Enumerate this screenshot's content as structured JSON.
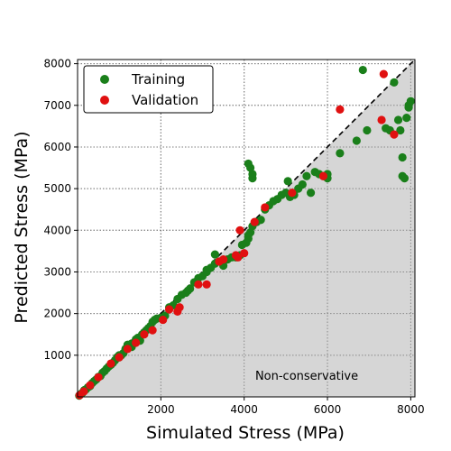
{
  "chart_data": {
    "type": "scatter",
    "xlabel": "Simulated Stress (MPa)",
    "ylabel": "Predicted Stress (MPa)",
    "xlim": [
      0,
      8100
    ],
    "ylim": [
      0,
      8100
    ],
    "xticks": [
      2000,
      4000,
      6000,
      8000
    ],
    "yticks": [
      1000,
      2000,
      3000,
      4000,
      5000,
      6000,
      7000,
      8000
    ],
    "grid": true,
    "legend_position": "top-left",
    "annotation": "Non-conservative",
    "shaded_region": "below y = x",
    "reference_line": "y = x (dashed)",
    "colors": {
      "training": "#1a7f1a",
      "validation": "#e01010",
      "shade": "#d6d6d6"
    },
    "series": [
      {
        "name": "Training",
        "points": [
          [
            40,
            30
          ],
          [
            80,
            70
          ],
          [
            120,
            100
          ],
          [
            160,
            160
          ],
          [
            200,
            180
          ],
          [
            250,
            230
          ],
          [
            300,
            260
          ],
          [
            350,
            330
          ],
          [
            400,
            380
          ],
          [
            450,
            420
          ],
          [
            500,
            480
          ],
          [
            550,
            500
          ],
          [
            600,
            580
          ],
          [
            650,
            620
          ],
          [
            700,
            680
          ],
          [
            750,
            730
          ],
          [
            800,
            770
          ],
          [
            850,
            820
          ],
          [
            900,
            880
          ],
          [
            950,
            950
          ],
          [
            1000,
            1000
          ],
          [
            1050,
            1000
          ],
          [
            1100,
            1050
          ],
          [
            1150,
            1150
          ],
          [
            1200,
            1250
          ],
          [
            1250,
            1230
          ],
          [
            1300,
            1280
          ],
          [
            1350,
            1300
          ],
          [
            1400,
            1380
          ],
          [
            1450,
            1420
          ],
          [
            1500,
            1350
          ],
          [
            1550,
            1500
          ],
          [
            1600,
            1550
          ],
          [
            1650,
            1600
          ],
          [
            1700,
            1650
          ],
          [
            1750,
            1700
          ],
          [
            1800,
            1800
          ],
          [
            1850,
            1850
          ],
          [
            1900,
            1880
          ],
          [
            2000,
            1900
          ],
          [
            2100,
            1950
          ],
          [
            2200,
            2150
          ],
          [
            2300,
            2200
          ],
          [
            2400,
            2350
          ],
          [
            2500,
            2450
          ],
          [
            2600,
            2500
          ],
          [
            2700,
            2600
          ],
          [
            2800,
            2750
          ],
          [
            2900,
            2850
          ],
          [
            3000,
            2900
          ],
          [
            3100,
            3000
          ],
          [
            3200,
            3100
          ],
          [
            3300,
            3200
          ],
          [
            3300,
            3420
          ],
          [
            3400,
            3250
          ],
          [
            3500,
            3150
          ],
          [
            3600,
            3300
          ],
          [
            3700,
            3350
          ],
          [
            3800,
            3350
          ],
          [
            3900,
            3400
          ],
          [
            3950,
            3650
          ],
          [
            4050,
            3700
          ],
          [
            4100,
            3800
          ],
          [
            4100,
            3880
          ],
          [
            4150,
            3950
          ],
          [
            4200,
            4100
          ],
          [
            4300,
            4200
          ],
          [
            4400,
            4250
          ],
          [
            4500,
            4500
          ],
          [
            4600,
            4600
          ],
          [
            4700,
            4700
          ],
          [
            4800,
            4750
          ],
          [
            4900,
            4850
          ],
          [
            5000,
            4900
          ],
          [
            5100,
            4800
          ],
          [
            5200,
            4850
          ],
          [
            5300,
            5000
          ],
          [
            5400,
            5100
          ],
          [
            5500,
            5300
          ],
          [
            5600,
            4900
          ],
          [
            5700,
            5400
          ],
          [
            5800,
            5350
          ],
          [
            5900,
            5300
          ],
          [
            6000,
            5250
          ],
          [
            6000,
            5350
          ],
          [
            4100,
            5600
          ],
          [
            4150,
            5500
          ],
          [
            4200,
            5350
          ],
          [
            4200,
            5250
          ],
          [
            5050,
            5180
          ],
          [
            6300,
            5850
          ],
          [
            6700,
            6150
          ],
          [
            6850,
            7850
          ],
          [
            6950,
            6400
          ],
          [
            7400,
            6450
          ],
          [
            7500,
            6400
          ],
          [
            7600,
            7550
          ],
          [
            7700,
            6650
          ],
          [
            7750,
            6400
          ],
          [
            7800,
            5750
          ],
          [
            7800,
            5300
          ],
          [
            7850,
            5250
          ],
          [
            7900,
            6700
          ],
          [
            7950,
            6950
          ],
          [
            8000,
            7100
          ],
          [
            7950,
            7000
          ],
          [
            3100,
            3050
          ],
          [
            2650,
            2550
          ],
          [
            1300,
            1200
          ],
          [
            1000,
            950
          ]
        ]
      },
      {
        "name": "Validation",
        "points": [
          [
            50,
            40
          ],
          [
            150,
            130
          ],
          [
            300,
            280
          ],
          [
            500,
            470
          ],
          [
            800,
            800
          ],
          [
            1000,
            950
          ],
          [
            1200,
            1150
          ],
          [
            1400,
            1300
          ],
          [
            1600,
            1500
          ],
          [
            1800,
            1600
          ],
          [
            2050,
            1850
          ],
          [
            2200,
            2100
          ],
          [
            2400,
            2050
          ],
          [
            2450,
            2150
          ],
          [
            2900,
            2700
          ],
          [
            3100,
            2700
          ],
          [
            3400,
            3250
          ],
          [
            3500,
            3300
          ],
          [
            3800,
            3400
          ],
          [
            3850,
            3350
          ],
          [
            3900,
            4000
          ],
          [
            4000,
            3450
          ],
          [
            4250,
            4200
          ],
          [
            4500,
            4550
          ],
          [
            5150,
            4900
          ],
          [
            5900,
            5300
          ],
          [
            6300,
            6900
          ],
          [
            7300,
            6650
          ],
          [
            7350,
            7750
          ],
          [
            7600,
            6300
          ]
        ]
      }
    ]
  }
}
